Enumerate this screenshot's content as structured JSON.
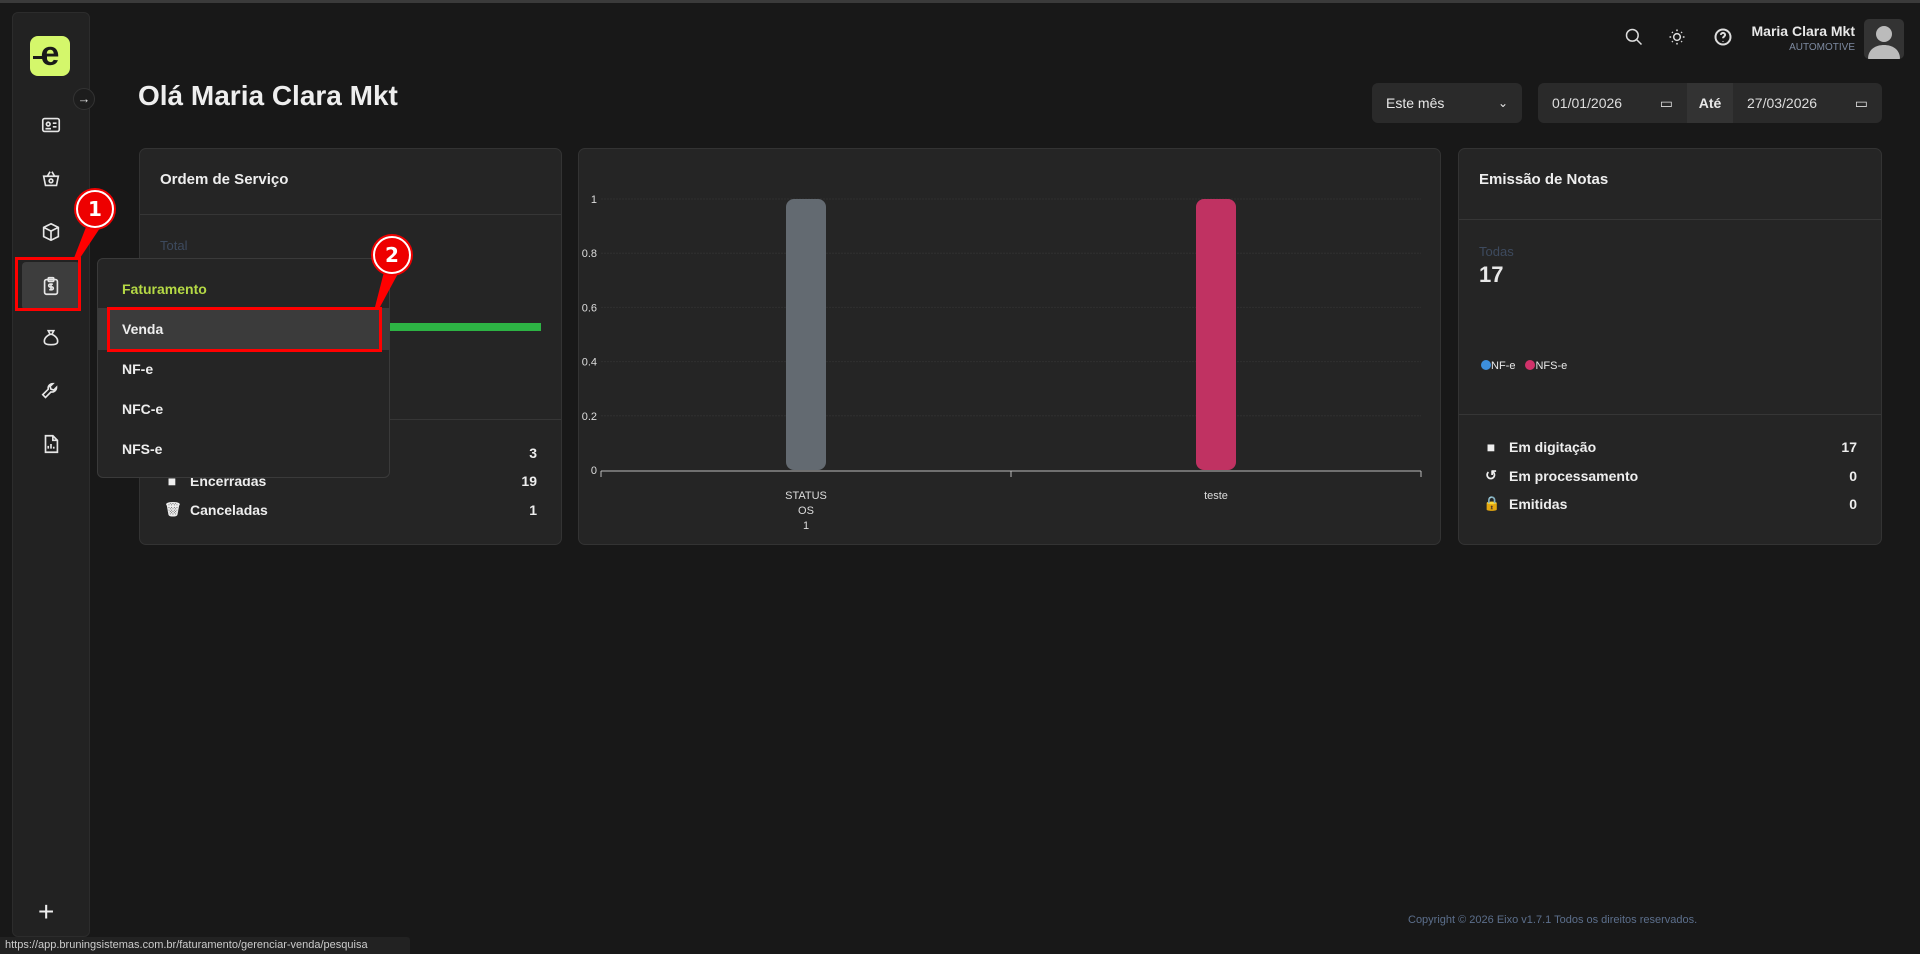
{
  "app": {
    "logo_letter": "e",
    "greeting": "Olá Maria Clara Mkt",
    "footer": "Copyright © 2026 Eixo v1.7.1 Todos os direitos reservados.",
    "status_url": "https://app.bruningsistemas.com.br/faturamento/gerenciar-venda/pesquisa"
  },
  "user": {
    "name": "Maria Clara Mkt",
    "company": "AUTOMOTIVE"
  },
  "sidebar": {
    "items": [
      {
        "icon": "id-card-icon"
      },
      {
        "icon": "basket-icon"
      },
      {
        "icon": "box-icon"
      },
      {
        "icon": "billing-clipboard-icon",
        "active": true
      },
      {
        "icon": "money-bag-icon"
      },
      {
        "icon": "wrench-icon"
      },
      {
        "icon": "report-icon"
      }
    ],
    "add_icon": "plus-icon"
  },
  "annotations": {
    "badge1": "1",
    "badge2": "2"
  },
  "filters": {
    "period": "Este mês",
    "date_from": "01/01/2026",
    "until_label": "Até",
    "date_to": "27/03/2026"
  },
  "submenu": {
    "heading": "Faturamento",
    "items": [
      "Venda",
      "NF-e",
      "NFC-e",
      "NFS-e"
    ],
    "heading_color": "#b5d945"
  },
  "os_card": {
    "title": "Ordem de Serviço",
    "total_label": "Total",
    "bar_color": "#2db344",
    "rows": [
      {
        "label": "",
        "value": "3"
      },
      {
        "label": "Encerradas",
        "value": "19"
      },
      {
        "label": "Canceladas",
        "value": "1"
      }
    ]
  },
  "chart_data": {
    "type": "bar",
    "categories": [
      [
        "STATUS",
        "OS",
        "1"
      ],
      [
        "teste"
      ]
    ],
    "values": [
      1,
      1
    ],
    "colors": [
      "#636a71",
      "#c03262"
    ],
    "yticks": [
      "0",
      "0.2",
      "0.4",
      "0.6",
      "0.8",
      "1"
    ],
    "ylim": [
      0,
      1
    ],
    "grid": true
  },
  "notes_card": {
    "title": "Emissão de Notas",
    "all_label": "Todas",
    "all_value": "17",
    "legend": [
      {
        "label": "NF-e",
        "color": "#3d8fdc"
      },
      {
        "label": "NFS-e",
        "color": "#d0326a"
      }
    ],
    "rows": [
      {
        "label": "Em digitação",
        "value": "17"
      },
      {
        "label": "Em processamento",
        "value": "0"
      },
      {
        "label": "Emitidas",
        "value": "0"
      }
    ]
  }
}
